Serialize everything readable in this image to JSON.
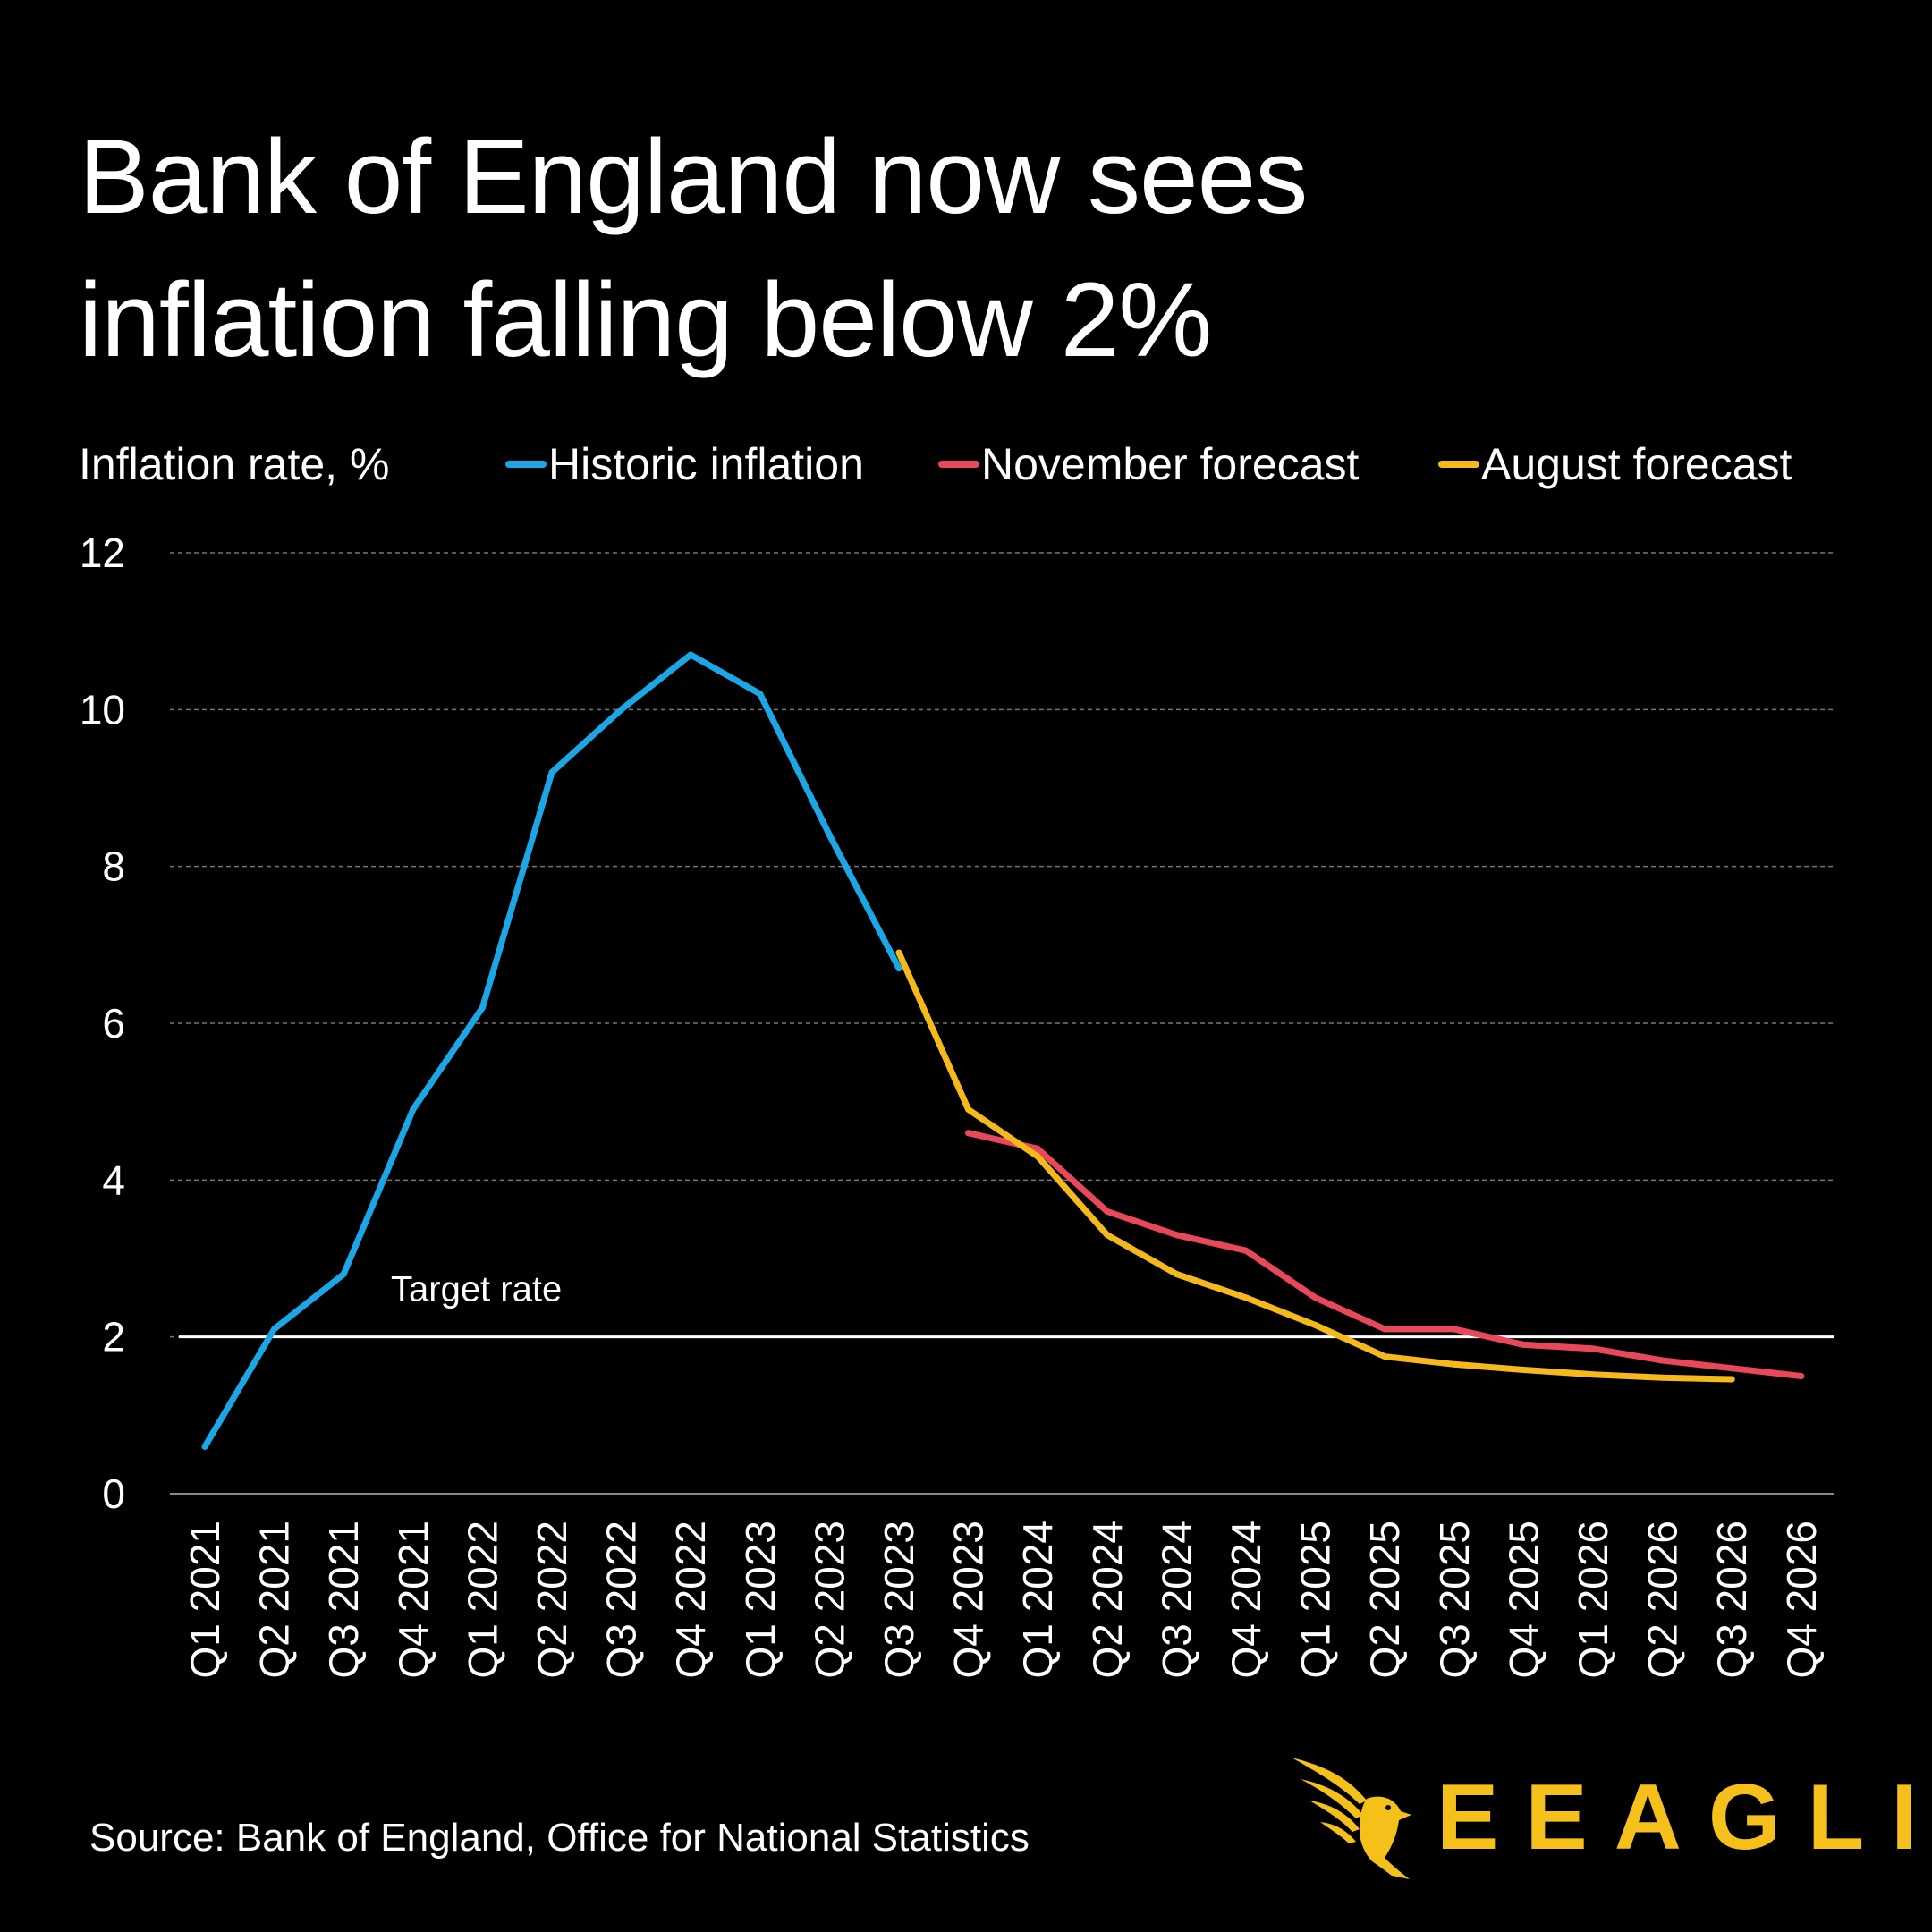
{
  "title_lines": [
    "Bank of England now sees",
    "inflation falling below 2%"
  ],
  "source": "Source: Bank of England, Office for National Statistics",
  "logo": {
    "text": "EEAGLI",
    "icon": "eagle-icon",
    "color": "#f5c01a"
  },
  "colors": {
    "background": "#000000",
    "historic": "#1ba7e6",
    "november": "#e8485a",
    "august": "#f5b91c",
    "target": "#ffffff"
  },
  "chart_data": {
    "type": "line",
    "ylabel": "Inflation rate, %",
    "ylim": [
      0,
      12
    ],
    "yticks": [
      0,
      2,
      4,
      6,
      8,
      10,
      12
    ],
    "grid": true,
    "legend_position": "top",
    "categories": [
      "Q1 2021",
      "Q2 2021",
      "Q3 2021",
      "Q4 2021",
      "Q1 2022",
      "Q2 2022",
      "Q3 2022",
      "Q4 2022",
      "Q1 2023",
      "Q2 2023",
      "Q3 2023",
      "Q4 2023",
      "Q1 2024",
      "Q2 2024",
      "Q3 2024",
      "Q4 2024",
      "Q1 2025",
      "Q2 2025",
      "Q3 2025",
      "Q4 2025",
      "Q1 2026",
      "Q2 2026",
      "Q3 2026",
      "Q4 2026"
    ],
    "series": [
      {
        "name": "Historic inflation",
        "color": "#1ba7e6",
        "values": [
          0.6,
          2.1,
          2.8,
          4.9,
          6.2,
          9.2,
          10.0,
          10.7,
          10.2,
          8.4,
          6.7,
          null,
          null,
          null,
          null,
          null,
          null,
          null,
          null,
          null,
          null,
          null,
          null,
          null
        ]
      },
      {
        "name": "November forecast",
        "color": "#e8485a",
        "values": [
          null,
          null,
          null,
          null,
          null,
          null,
          null,
          null,
          null,
          null,
          null,
          4.6,
          4.4,
          3.6,
          3.3,
          3.1,
          2.5,
          2.1,
          2.1,
          1.9,
          1.85,
          1.7,
          1.6,
          1.5
        ]
      },
      {
        "name": "August forecast",
        "color": "#f5b91c",
        "values": [
          null,
          null,
          null,
          null,
          null,
          null,
          null,
          null,
          null,
          null,
          6.9,
          4.9,
          4.3,
          3.3,
          2.8,
          2.5,
          2.15,
          1.75,
          1.65,
          1.58,
          1.52,
          1.48,
          1.46,
          null
        ]
      }
    ],
    "annotations": [
      {
        "type": "hline",
        "y": 2,
        "label": "Target rate",
        "color": "#ffffff"
      }
    ]
  }
}
